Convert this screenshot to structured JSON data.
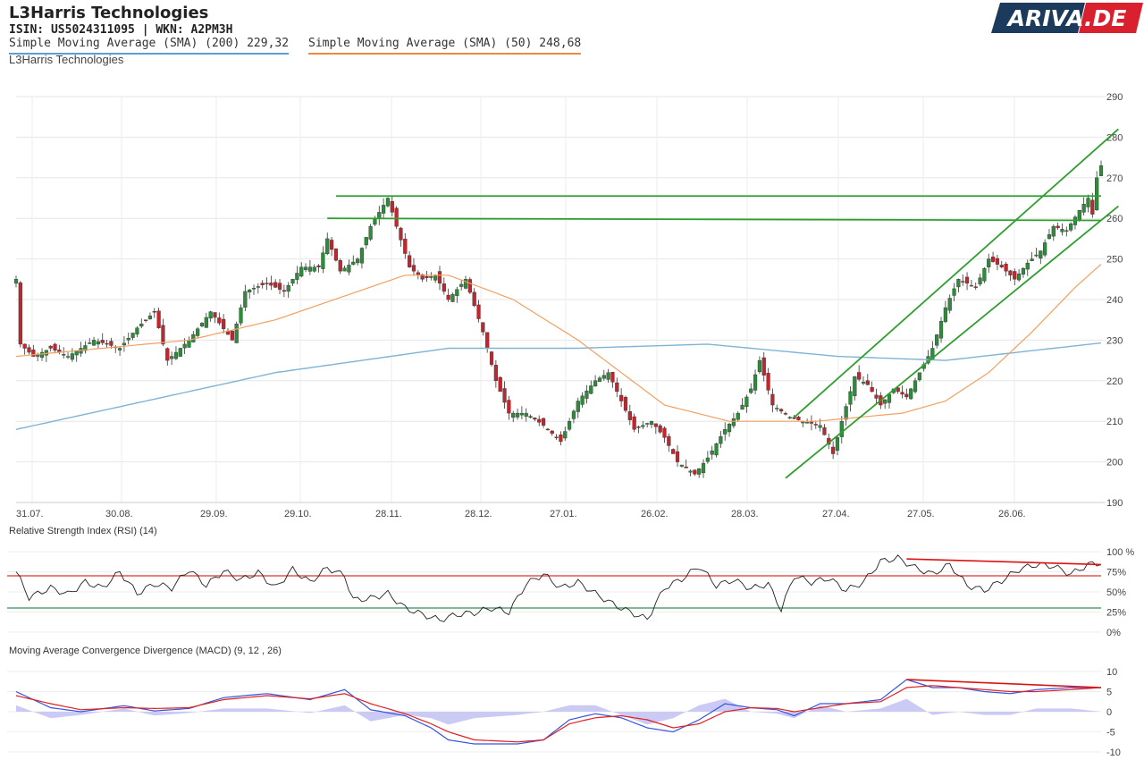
{
  "header": {
    "title": "L3Harris Technologies",
    "ids": "ISIN: US5024311095  | WKN: A2PM3H",
    "sma200_label": "Simple Moving Average (SMA) (200) 229,32",
    "sma50_label": "Simple Moving Average (SMA) (50) 248,68",
    "subtitle": "L3Harris Technologies"
  },
  "logo": {
    "text": "ARIVA.DE",
    "colors": {
      "dark": "#1c3a5c",
      "red": "#d8202f"
    }
  },
  "colors": {
    "up": "#2e8b3c",
    "down": "#c0262d",
    "sma200": "#7fb3d5",
    "sma50": "#f2a061",
    "trend": "#2e9e2e",
    "rsi_top": "#d33",
    "rsi_bottom": "#3a8a5a",
    "macd": "#3355dd",
    "signal": "#e02020",
    "hist": "#c4c4f4"
  },
  "chart_data": [
    {
      "type": "candlestick",
      "title": "L3Harris Technologies",
      "x_ticks": [
        "31.07.",
        "30.08.",
        "29.09.",
        "29.10.",
        "28.11.",
        "28.12.",
        "27.01.",
        "26.02.",
        "28.03.",
        "27.04.",
        "27.05.",
        "26.06."
      ],
      "y_ticks": [
        190,
        200,
        210,
        220,
        230,
        240,
        250,
        260,
        270,
        280,
        290
      ],
      "ylim": [
        190,
        290
      ],
      "grid": true,
      "close_anchors": [
        [
          0,
          245
        ],
        [
          1,
          229
        ],
        [
          4,
          226
        ],
        [
          8,
          228
        ],
        [
          12,
          226
        ],
        [
          18,
          230
        ],
        [
          24,
          228
        ],
        [
          28,
          233
        ],
        [
          32,
          237
        ],
        [
          35,
          225
        ],
        [
          40,
          230
        ],
        [
          45,
          237
        ],
        [
          50,
          230
        ],
        [
          53,
          242
        ],
        [
          58,
          244
        ],
        [
          62,
          242
        ],
        [
          66,
          248
        ],
        [
          70,
          248
        ],
        [
          72,
          255
        ],
        [
          75,
          247
        ],
        [
          79,
          250
        ],
        [
          82,
          258
        ],
        [
          86,
          265
        ],
        [
          88,
          258
        ],
        [
          91,
          248
        ],
        [
          94,
          245
        ],
        [
          97,
          246
        ],
        [
          100,
          240
        ],
        [
          104,
          245
        ],
        [
          108,
          232
        ],
        [
          111,
          220
        ],
        [
          114,
          212
        ],
        [
          118,
          212
        ],
        [
          122,
          209
        ],
        [
          126,
          205
        ],
        [
          130,
          215
        ],
        [
          134,
          220
        ],
        [
          137,
          222
        ],
        [
          140,
          215
        ],
        [
          143,
          208
        ],
        [
          147,
          210
        ],
        [
          150,
          206
        ],
        [
          153,
          200
        ],
        [
          157,
          197
        ],
        [
          160,
          201
        ],
        [
          164,
          208
        ],
        [
          167,
          212
        ],
        [
          170,
          218
        ],
        [
          172,
          225
        ],
        [
          175,
          214
        ],
        [
          179,
          211
        ],
        [
          182,
          210
        ],
        [
          186,
          209
        ],
        [
          189,
          202
        ],
        [
          191,
          210
        ],
        [
          194,
          221
        ],
        [
          197,
          219
        ],
        [
          200,
          214
        ],
        [
          203,
          218
        ],
        [
          206,
          216
        ],
        [
          209,
          222
        ],
        [
          212,
          228
        ],
        [
          215,
          238
        ],
        [
          218,
          245
        ],
        [
          222,
          243
        ],
        [
          225,
          250
        ],
        [
          228,
          248
        ],
        [
          231,
          245
        ],
        [
          234,
          249
        ],
        [
          237,
          252
        ],
        [
          240,
          258
        ],
        [
          243,
          257
        ],
        [
          246,
          262
        ],
        [
          248,
          265
        ],
        [
          249,
          261
        ],
        [
          250,
          270
        ],
        [
          251,
          273
        ]
      ],
      "sma200_anchors": [
        [
          0,
          208
        ],
        [
          30,
          215
        ],
        [
          60,
          222
        ],
        [
          100,
          228
        ],
        [
          130,
          228
        ],
        [
          160,
          229
        ],
        [
          190,
          226
        ],
        [
          215,
          225
        ],
        [
          240,
          228
        ],
        [
          251,
          229.3
        ]
      ],
      "sma50_anchors": [
        [
          0,
          226
        ],
        [
          20,
          228
        ],
        [
          40,
          230
        ],
        [
          60,
          235
        ],
        [
          90,
          246
        ],
        [
          100,
          246
        ],
        [
          115,
          240
        ],
        [
          130,
          230
        ],
        [
          150,
          214
        ],
        [
          165,
          210
        ],
        [
          185,
          210
        ],
        [
          205,
          212
        ],
        [
          215,
          215
        ],
        [
          225,
          222
        ],
        [
          235,
          232
        ],
        [
          245,
          243
        ],
        [
          251,
          248.7
        ]
      ],
      "trend_lines": [
        {
          "x0": 74,
          "y0": 265.5,
          "x1": 251,
          "y1": 265.5
        },
        {
          "x0": 72,
          "y0": 260,
          "x1": 251,
          "y1": 259.5
        },
        {
          "x0": 180,
          "y0": 211,
          "x1": 255,
          "y1": 282
        },
        {
          "x0": 178,
          "y0": 196,
          "x1": 255,
          "y1": 263
        }
      ]
    },
    {
      "type": "line",
      "title": "Relative Strength Index (RSI) (14)",
      "y_ticks": [
        "100 %",
        "75%",
        "50%",
        "25%",
        "0%"
      ],
      "ylim": [
        0,
        100
      ],
      "levels": [
        70,
        30
      ],
      "anchors": [
        [
          0,
          75
        ],
        [
          3,
          43
        ],
        [
          8,
          55
        ],
        [
          12,
          47
        ],
        [
          16,
          62
        ],
        [
          20,
          55
        ],
        [
          24,
          75
        ],
        [
          28,
          48
        ],
        [
          32,
          60
        ],
        [
          36,
          55
        ],
        [
          40,
          78
        ],
        [
          44,
          58
        ],
        [
          48,
          76
        ],
        [
          52,
          65
        ],
        [
          56,
          74
        ],
        [
          60,
          55
        ],
        [
          64,
          78
        ],
        [
          68,
          62
        ],
        [
          72,
          80
        ],
        [
          76,
          70
        ],
        [
          78,
          40
        ],
        [
          82,
          42
        ],
        [
          86,
          48
        ],
        [
          90,
          30
        ],
        [
          94,
          22
        ],
        [
          98,
          15
        ],
        [
          102,
          22
        ],
        [
          106,
          24
        ],
        [
          110,
          30
        ],
        [
          114,
          25
        ],
        [
          118,
          60
        ],
        [
          122,
          72
        ],
        [
          126,
          55
        ],
        [
          130,
          62
        ],
        [
          134,
          48
        ],
        [
          138,
          35
        ],
        [
          142,
          25
        ],
        [
          146,
          16
        ],
        [
          150,
          55
        ],
        [
          154,
          66
        ],
        [
          158,
          82
        ],
        [
          162,
          58
        ],
        [
          166,
          65
        ],
        [
          170,
          54
        ],
        [
          174,
          60
        ],
        [
          177,
          28
        ],
        [
          180,
          70
        ],
        [
          184,
          62
        ],
        [
          188,
          67
        ],
        [
          192,
          52
        ],
        [
          196,
          62
        ],
        [
          200,
          88
        ],
        [
          204,
          92
        ],
        [
          208,
          80
        ],
        [
          212,
          72
        ],
        [
          216,
          84
        ],
        [
          220,
          58
        ],
        [
          224,
          52
        ],
        [
          228,
          64
        ],
        [
          232,
          78
        ],
        [
          236,
          84
        ],
        [
          240,
          82
        ],
        [
          244,
          72
        ],
        [
          248,
          84
        ],
        [
          251,
          86
        ]
      ],
      "divergence_line": {
        "x0": 206,
        "y0": 91,
        "x1": 251,
        "y1": 84
      }
    },
    {
      "type": "line",
      "title": "Moving Average Convergence Divergence (MACD) (9, 12 , 26)",
      "y_ticks": [
        10,
        5,
        0,
        -5,
        -10
      ],
      "ylim": [
        -10,
        10
      ],
      "series": [
        {
          "anchors": [
            [
              0,
              5
            ],
            [
              8,
              1
            ],
            [
              15,
              0
            ],
            [
              25,
              1.5
            ],
            [
              32,
              0.2
            ],
            [
              40,
              0.8
            ],
            [
              48,
              3.5
            ],
            [
              58,
              4.5
            ],
            [
              68,
              3
            ],
            [
              76,
              5.5
            ],
            [
              82,
              0.5
            ],
            [
              90,
              -1
            ],
            [
              96,
              -4
            ],
            [
              100,
              -7
            ],
            [
              106,
              -8
            ],
            [
              116,
              -8
            ],
            [
              122,
              -7
            ],
            [
              128,
              -2
            ],
            [
              134,
              -0.5
            ],
            [
              140,
              -1.5
            ],
            [
              146,
              -4
            ],
            [
              152,
              -5
            ],
            [
              158,
              -2
            ],
            [
              164,
              2
            ],
            [
              170,
              1
            ],
            [
              176,
              0.5
            ],
            [
              180,
              -1
            ],
            [
              186,
              2
            ],
            [
              192,
              2
            ],
            [
              200,
              3
            ],
            [
              206,
              8
            ],
            [
              212,
              6
            ],
            [
              218,
              6
            ],
            [
              224,
              5
            ],
            [
              230,
              4.5
            ],
            [
              236,
              5.5
            ],
            [
              244,
              6
            ],
            [
              251,
              6
            ]
          ]
        },
        {
          "anchors": [
            [
              0,
              4
            ],
            [
              8,
              2
            ],
            [
              15,
              0.5
            ],
            [
              25,
              1
            ],
            [
              32,
              0.8
            ],
            [
              40,
              1
            ],
            [
              48,
              3
            ],
            [
              58,
              4
            ],
            [
              68,
              3.2
            ],
            [
              76,
              4.5
            ],
            [
              82,
              2
            ],
            [
              90,
              -0.5
            ],
            [
              96,
              -3
            ],
            [
              100,
              -5
            ],
            [
              106,
              -7
            ],
            [
              116,
              -7.5
            ],
            [
              122,
              -7
            ],
            [
              128,
              -3
            ],
            [
              134,
              -1.5
            ],
            [
              140,
              -1
            ],
            [
              146,
              -2
            ],
            [
              152,
              -4
            ],
            [
              158,
              -3
            ],
            [
              164,
              0
            ],
            [
              170,
              1
            ],
            [
              176,
              0.8
            ],
            [
              180,
              0
            ],
            [
              186,
              1
            ],
            [
              192,
              2
            ],
            [
              200,
              2.5
            ],
            [
              206,
              6
            ],
            [
              212,
              6.5
            ],
            [
              218,
              6
            ],
            [
              224,
              5.5
            ],
            [
              230,
              5
            ],
            [
              236,
              5
            ],
            [
              244,
              5.5
            ],
            [
              251,
              6
            ]
          ]
        }
      ],
      "divergence_line": {
        "x0": 206,
        "y0": 8,
        "x1": 251,
        "y1": 6
      }
    }
  ]
}
